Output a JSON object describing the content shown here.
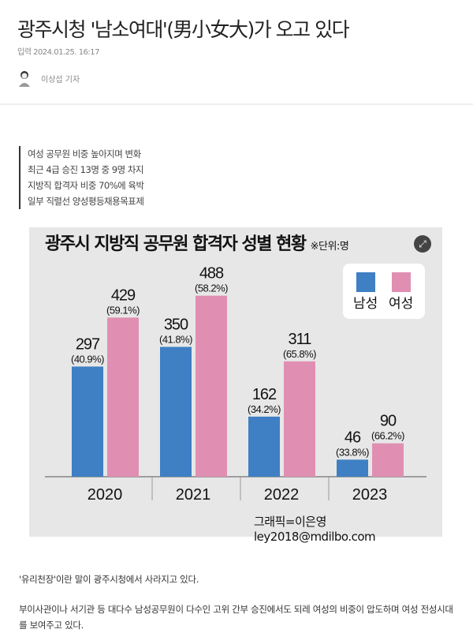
{
  "article": {
    "title": "광주시청 '남소여대'(男小女大)가 오고 있다",
    "date": "입력 2024.01.25. 16:17",
    "author": "이상섭 기자",
    "summary": [
      "여성 공무원 비중 높아지며 변화",
      "최근 4급 승진 13명 중 9명 차지",
      "지방직 합격자 비중 70%에 육박",
      "일부 직렬선 양성평등채용목표제"
    ],
    "paragraphs": [
      "'유리천장'이란 말이 광주시청에서 사라지고 있다.",
      "부이사관이나 서기관 등 대다수 남성공무원이 다수인 고위 간부 승진에서도 되레 여성의 비중이 압도하며 여성 전성시대를 보여주고 있다."
    ]
  },
  "chart_data": {
    "type": "bar",
    "title": "광주시 지방직 공무원 합격자 성별 현황",
    "unit": "※단위:명",
    "categories": [
      "2020",
      "2021",
      "2022",
      "2023"
    ],
    "series": [
      {
        "name": "남성",
        "color": "#3f7fc4",
        "values": [
          297,
          350,
          162,
          46
        ],
        "labels": [
          "(40.9%)",
          "(41.8%)",
          "(34.2%)",
          "(33.8%)"
        ]
      },
      {
        "name": "여성",
        "color": "#e08fb2",
        "values": [
          429,
          488,
          311,
          90
        ],
        "labels": [
          "(59.1%)",
          "(58.2%)",
          "(65.8%)",
          "(66.2%)"
        ]
      }
    ],
    "legend": "top-right",
    "credit": "그래픽=이은영 ley2018@mdilbo.com",
    "grid": false
  },
  "icons": {
    "expand": "expand-icon",
    "avatar": "avatar-icon"
  }
}
